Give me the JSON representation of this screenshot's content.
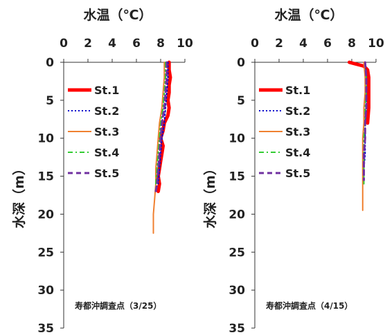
{
  "chart_data": [
    {
      "type": "line",
      "title": "水温（℃）",
      "xlabel": "水温（℃）",
      "ylabel": "水深（m）",
      "xlim": [
        0,
        10
      ],
      "ylim": [
        0,
        35
      ],
      "y_inverted": true,
      "x_ticks": [
        0,
        2,
        4,
        6,
        8,
        10
      ],
      "y_ticks": [
        0,
        5,
        10,
        15,
        20,
        25,
        30,
        35
      ],
      "grid": false,
      "legend_position": "upper-left",
      "annotation": "寿都沖調査点（3/25）",
      "series": [
        {
          "name": "St.1",
          "color": "#ff0000",
          "dash": "solid",
          "width": 5,
          "points": [
            [
              8.7,
              0
            ],
            [
              8.7,
              1
            ],
            [
              8.8,
              2
            ],
            [
              8.7,
              3
            ],
            [
              8.7,
              4
            ],
            [
              8.6,
              5
            ],
            [
              8.7,
              6
            ],
            [
              8.6,
              7
            ],
            [
              8.3,
              8
            ],
            [
              8.2,
              9
            ],
            [
              8.0,
              10
            ],
            [
              8.2,
              11
            ],
            [
              8.1,
              12
            ],
            [
              8.0,
              13
            ],
            [
              7.9,
              14
            ],
            [
              7.8,
              15
            ],
            [
              7.9,
              16
            ],
            [
              7.8,
              17
            ]
          ]
        },
        {
          "name": "St.2",
          "color": "#0000cc",
          "dash": "dot",
          "width": 2,
          "points": [
            [
              8.6,
              0
            ],
            [
              8.6,
              2
            ],
            [
              8.5,
              4
            ],
            [
              8.4,
              6
            ],
            [
              8.3,
              8
            ],
            [
              8.1,
              10
            ],
            [
              8.0,
              12
            ],
            [
              7.9,
              14
            ],
            [
              7.8,
              16
            ]
          ]
        },
        {
          "name": "St.3",
          "color": "#f08030",
          "dash": "solid",
          "width": 2,
          "points": [
            [
              8.3,
              0
            ],
            [
              8.3,
              2
            ],
            [
              8.2,
              4
            ],
            [
              8.1,
              6
            ],
            [
              7.9,
              8
            ],
            [
              7.8,
              10
            ],
            [
              7.7,
              12
            ],
            [
              7.6,
              14
            ],
            [
              7.6,
              16
            ],
            [
              7.5,
              18
            ],
            [
              7.4,
              20
            ],
            [
              7.4,
              22.5
            ]
          ]
        },
        {
          "name": "St.4",
          "color": "#33cc33",
          "dash": "dashdot",
          "width": 2,
          "points": [
            [
              8.4,
              0
            ],
            [
              8.4,
              2
            ],
            [
              8.3,
              4
            ],
            [
              8.2,
              6
            ],
            [
              8.0,
              8
            ],
            [
              7.9,
              10
            ],
            [
              7.8,
              12
            ],
            [
              7.7,
              14
            ],
            [
              7.6,
              16
            ]
          ]
        },
        {
          "name": "St.5",
          "color": "#7030a0",
          "dash": "dash",
          "width": 3,
          "points": [
            [
              8.5,
              0
            ],
            [
              8.5,
              2
            ],
            [
              8.4,
              4
            ],
            [
              8.3,
              6
            ],
            [
              8.1,
              8
            ],
            [
              8.0,
              10
            ],
            [
              7.9,
              12
            ],
            [
              7.8,
              14
            ],
            [
              7.7,
              16
            ],
            [
              7.6,
              17
            ]
          ]
        }
      ]
    },
    {
      "type": "line",
      "title": "水温（℃）",
      "xlabel": "水温（℃）",
      "ylabel": "水深（m）",
      "xlim": [
        0,
        10
      ],
      "ylim": [
        0,
        35
      ],
      "y_inverted": true,
      "x_ticks": [
        0,
        2,
        4,
        6,
        8,
        10
      ],
      "y_ticks": [
        0,
        5,
        10,
        15,
        20,
        25,
        30,
        35
      ],
      "grid": false,
      "legend_position": "upper-left",
      "annotation": "寿都沖調査点（4/15）",
      "series": [
        {
          "name": "St.1",
          "color": "#ff0000",
          "dash": "solid",
          "width": 5,
          "points": [
            [
              7.8,
              0
            ],
            [
              9.0,
              0.5
            ],
            [
              9.3,
              1
            ],
            [
              9.4,
              2
            ],
            [
              9.4,
              4
            ],
            [
              9.4,
              6
            ],
            [
              9.3,
              8
            ]
          ]
        },
        {
          "name": "St.2",
          "color": "#0000cc",
          "dash": "dot",
          "width": 2,
          "points": [
            [
              9.1,
              0
            ],
            [
              9.2,
              2
            ],
            [
              9.2,
              4
            ],
            [
              9.2,
              6
            ],
            [
              9.1,
              8
            ],
            [
              9.1,
              10
            ],
            [
              9.1,
              12
            ],
            [
              9.0,
              14
            ],
            [
              9.0,
              16
            ]
          ]
        },
        {
          "name": "St.3",
          "color": "#f08030",
          "dash": "solid",
          "width": 2,
          "points": [
            [
              9.0,
              0
            ],
            [
              9.1,
              2
            ],
            [
              9.1,
              4
            ],
            [
              9.0,
              6
            ],
            [
              9.0,
              8
            ],
            [
              8.9,
              10
            ],
            [
              8.9,
              12
            ],
            [
              8.9,
              14
            ],
            [
              8.9,
              16
            ],
            [
              8.9,
              18
            ],
            [
              8.9,
              19.5
            ]
          ]
        },
        {
          "name": "St.4",
          "color": "#33cc33",
          "dash": "dashdot",
          "width": 2,
          "points": [
            [
              9.1,
              0
            ],
            [
              9.2,
              2
            ],
            [
              9.2,
              4
            ],
            [
              9.1,
              6
            ],
            [
              9.1,
              8
            ],
            [
              9.0,
              10
            ],
            [
              9.0,
              12
            ],
            [
              9.0,
              14
            ],
            [
              9.0,
              16
            ]
          ]
        },
        {
          "name": "St.5",
          "color": "#7030a0",
          "dash": "dash",
          "width": 3,
          "points": [
            [
              9.1,
              0
            ],
            [
              9.2,
              2
            ],
            [
              9.2,
              4
            ],
            [
              9.2,
              6
            ],
            [
              9.1,
              8
            ],
            [
              9.1,
              10
            ],
            [
              9.0,
              12
            ],
            [
              9.0,
              14
            ],
            [
              9.0,
              15.5
            ]
          ]
        }
      ]
    }
  ]
}
